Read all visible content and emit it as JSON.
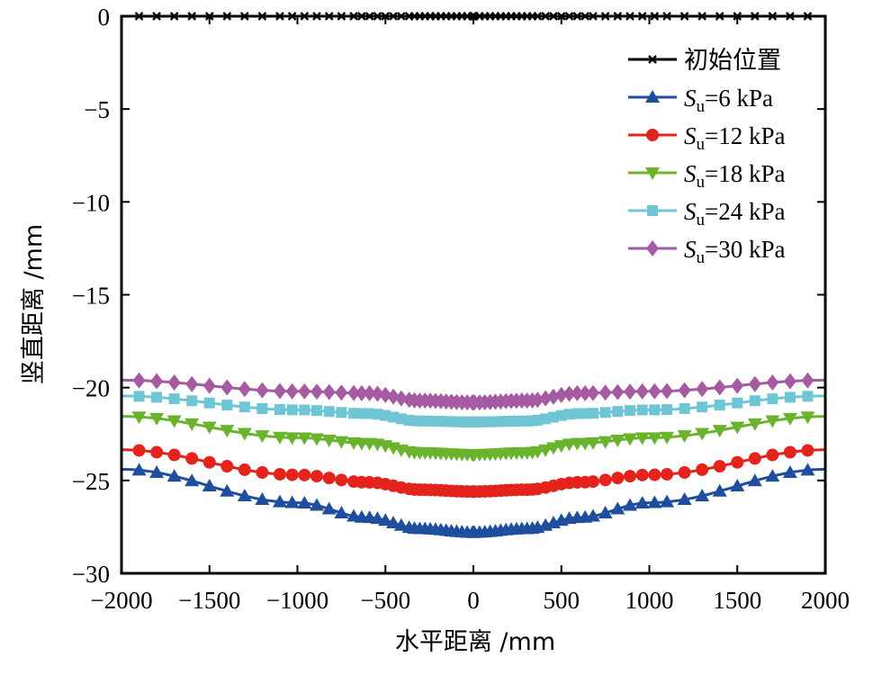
{
  "chart_data": {
    "type": "line",
    "title": "",
    "xlabel": "水平距离 /mm",
    "ylabel": "竖直距离 /mm",
    "xlim": [
      -2000,
      2000
    ],
    "ylim": [
      -30,
      0
    ],
    "xticks": [
      -2000,
      -1500,
      -1000,
      -500,
      0,
      500,
      1000,
      1500,
      2000
    ],
    "xtick_labels": [
      "−2000",
      "−1500",
      "−1000",
      "−500",
      "0",
      "500",
      "1000",
      "1500",
      "2000"
    ],
    "yticks": [
      0,
      -5,
      -10,
      -15,
      -20,
      -25,
      -30
    ],
    "ytick_labels": [
      "0",
      "−5",
      "−10",
      "−15",
      "−20",
      "−25",
      "−30"
    ],
    "grid": false,
    "legend_position": "top-right",
    "profile_x": [
      -2000,
      -1000,
      -600,
      -300,
      0,
      300,
      600,
      1000,
      2000
    ],
    "series": [
      {
        "name": "初始位置",
        "marker": "x",
        "color": "#000000",
        "values": [
          0,
          0,
          0,
          0,
          0,
          0,
          0,
          0,
          0
        ]
      },
      {
        "name": "S_u=6 kPa",
        "subscript_label": {
          "main": "S",
          "sub": "u",
          "rest": "=6 kPa"
        },
        "marker": "triangle-up",
        "color": "#1f4e9e",
        "values": [
          -24.4,
          -26.2,
          -27.0,
          -27.6,
          -27.8,
          -27.6,
          -27.0,
          -26.2,
          -24.4
        ]
      },
      {
        "name": "S_u=12 kPa",
        "subscript_label": {
          "main": "S",
          "sub": "u",
          "rest": "=12 kPa"
        },
        "marker": "circle",
        "color": "#e3231c",
        "values": [
          -23.35,
          -24.7,
          -25.1,
          -25.5,
          -25.6,
          -25.5,
          -25.1,
          -24.7,
          -23.35
        ]
      },
      {
        "name": "S_u=18 kPa",
        "subscript_label": {
          "main": "S",
          "sub": "u",
          "rest": "=18 kPa"
        },
        "marker": "triangle-down",
        "color": "#6ab42d",
        "values": [
          -21.55,
          -22.7,
          -23.0,
          -23.5,
          -23.6,
          -23.5,
          -23.0,
          -22.7,
          -21.55
        ]
      },
      {
        "name": "S_u=24 kPa",
        "subscript_label": {
          "main": "S",
          "sub": "u",
          "rest": "=24 kPa"
        },
        "marker": "square",
        "color": "#6ec6d4",
        "values": [
          -20.45,
          -21.2,
          -21.4,
          -21.8,
          -21.85,
          -21.8,
          -21.4,
          -21.2,
          -20.45
        ]
      },
      {
        "name": "S_u=30 kPa",
        "subscript_label": {
          "main": "S",
          "sub": "u",
          "rest": "=30 kPa"
        },
        "marker": "diamond",
        "color": "#a55aa2",
        "values": [
          -19.6,
          -20.2,
          -20.3,
          -20.7,
          -20.8,
          -20.7,
          -20.3,
          -20.2,
          -19.6
        ]
      }
    ]
  }
}
